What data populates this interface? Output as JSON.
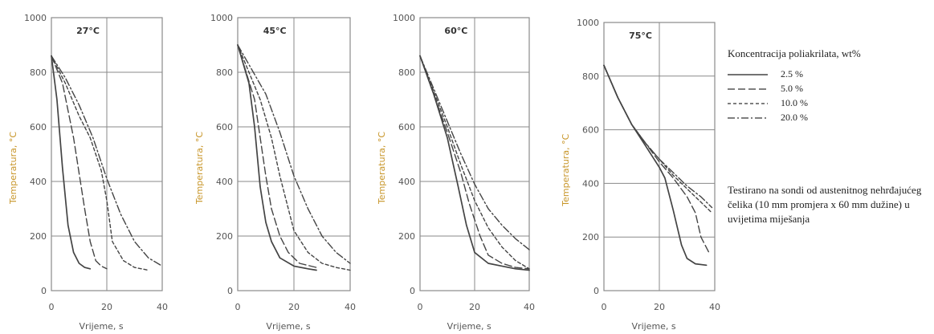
{
  "chart_data": [
    {
      "type": "line",
      "title": "27°C",
      "xlabel": "Vrijeme, s",
      "ylabel": "Temperatura, °C",
      "xlim": [
        0,
        40
      ],
      "ylim": [
        0,
        1000
      ],
      "xticks": [
        "0",
        "20",
        "40"
      ],
      "yticks": [
        "0",
        "200",
        "400",
        "600",
        "800",
        "1000"
      ],
      "series": [
        {
          "name": "2.5 %",
          "x": [
            0,
            2,
            4,
            6,
            8,
            10,
            12,
            14
          ],
          "y": [
            860,
            700,
            450,
            240,
            140,
            100,
            85,
            80
          ]
        },
        {
          "name": "5.0 %",
          "x": [
            0,
            4,
            8,
            12,
            14,
            16,
            18,
            20
          ],
          "y": [
            860,
            760,
            560,
            300,
            180,
            110,
            90,
            80
          ]
        },
        {
          "name": "10.0 %",
          "x": [
            0,
            5,
            10,
            14,
            18,
            20,
            22,
            26,
            30,
            35
          ],
          "y": [
            860,
            760,
            640,
            560,
            440,
            330,
            180,
            110,
            85,
            75
          ]
        },
        {
          "name": "20.0 %",
          "x": [
            0,
            5,
            10,
            15,
            20,
            25,
            30,
            35,
            40
          ],
          "y": [
            860,
            780,
            680,
            560,
            410,
            280,
            180,
            120,
            90
          ]
        }
      ]
    },
    {
      "type": "line",
      "title": "45°C",
      "xlabel": "Vrijeme, s",
      "ylabel": "Temperatura, °C",
      "xlim": [
        0,
        40
      ],
      "ylim": [
        0,
        1000
      ],
      "xticks": [
        "0",
        "20",
        "40"
      ],
      "yticks": [
        "0",
        "200",
        "400",
        "600",
        "800",
        "1000"
      ],
      "series": [
        {
          "name": "2.5 %",
          "x": [
            0,
            4,
            6,
            8,
            10,
            12,
            15,
            20,
            25,
            28
          ],
          "y": [
            900,
            760,
            600,
            380,
            250,
            180,
            120,
            90,
            80,
            75
          ]
        },
        {
          "name": "5.0 %",
          "x": [
            0,
            6,
            8,
            10,
            12,
            15,
            18,
            22,
            28
          ],
          "y": [
            900,
            700,
            560,
            420,
            300,
            200,
            140,
            100,
            85
          ]
        },
        {
          "name": "10.0 %",
          "x": [
            0,
            8,
            12,
            15,
            18,
            20,
            25,
            30,
            35,
            40
          ],
          "y": [
            900,
            700,
            560,
            420,
            300,
            220,
            140,
            100,
            85,
            75
          ]
        },
        {
          "name": "20.0 %",
          "x": [
            0,
            10,
            15,
            20,
            25,
            30,
            35,
            40
          ],
          "y": [
            900,
            720,
            580,
            420,
            300,
            200,
            140,
            100
          ]
        }
      ]
    },
    {
      "type": "line",
      "title": "60°C",
      "xlabel": "Vrijeme, s",
      "ylabel": "Temperatura, °C",
      "xlim": [
        0,
        40
      ],
      "ylim": [
        0,
        1000
      ],
      "xticks": [
        "0",
        "20",
        "40"
      ],
      "yticks": [
        "0",
        "200",
        "400",
        "600",
        "800",
        "1000"
      ],
      "series": [
        {
          "name": "2.5 %",
          "x": [
            0,
            5,
            10,
            14,
            17,
            20,
            25,
            30,
            35,
            40
          ],
          "y": [
            860,
            720,
            560,
            380,
            240,
            140,
            100,
            90,
            80,
            75
          ]
        },
        {
          "name": "5.0 %",
          "x": [
            0,
            5,
            10,
            15,
            18,
            22,
            25,
            30,
            35,
            40
          ],
          "y": [
            860,
            720,
            580,
            430,
            320,
            200,
            130,
            100,
            85,
            80
          ]
        },
        {
          "name": "10.0 %",
          "x": [
            0,
            5,
            10,
            15,
            20,
            25,
            30,
            35,
            40
          ],
          "y": [
            860,
            730,
            600,
            460,
            330,
            230,
            160,
            110,
            80
          ]
        },
        {
          "name": "20.0 %",
          "x": [
            0,
            5,
            10,
            15,
            20,
            25,
            30,
            35,
            40
          ],
          "y": [
            860,
            740,
            620,
            500,
            390,
            300,
            240,
            190,
            150
          ]
        }
      ]
    },
    {
      "type": "line",
      "title": "75°C",
      "xlabel": "Vrijeme, s",
      "ylabel": "Temperatura, °C",
      "xlim": [
        0,
        40
      ],
      "ylim": [
        0,
        1000
      ],
      "xticks": [
        "0",
        "20",
        "40"
      ],
      "yticks": [
        "0",
        "200",
        "400",
        "600",
        "800",
        "1000"
      ],
      "series": [
        {
          "name": "2.5 %",
          "x": [
            0,
            5,
            10,
            15,
            20,
            22,
            25,
            28,
            30,
            33,
            37
          ],
          "y": [
            840,
            720,
            620,
            540,
            460,
            420,
            300,
            170,
            120,
            100,
            95
          ]
        },
        {
          "name": "5.0 %",
          "x": [
            0,
            5,
            10,
            15,
            20,
            25,
            30,
            33,
            35,
            38
          ],
          "y": [
            840,
            720,
            620,
            550,
            480,
            420,
            350,
            290,
            200,
            140
          ]
        },
        {
          "name": "10.0 %",
          "x": [
            0,
            5,
            10,
            15,
            20,
            25,
            30,
            35,
            39
          ],
          "y": [
            840,
            720,
            620,
            550,
            490,
            430,
            380,
            330,
            290
          ]
        },
        {
          "name": "20.0 %",
          "x": [
            0,
            5,
            10,
            15,
            20,
            25,
            30,
            35,
            39
          ],
          "y": [
            840,
            720,
            620,
            550,
            490,
            440,
            390,
            350,
            310
          ]
        }
      ]
    }
  ],
  "legend": {
    "title": "Koncentracija poliakrilata, wt%",
    "items": [
      {
        "label": "2.5 %",
        "style": "solid"
      },
      {
        "label": "5.0 %",
        "style": "long-dash"
      },
      {
        "label": "10.0 %",
        "style": "short-dash"
      },
      {
        "label": "20.0 %",
        "style": "dash-dot"
      }
    ]
  },
  "note": "Testirano na sondi od austenitnog nehrđajućeg čelika (10 mm promjera x 60 mm dužine) u uvijetima miješanja",
  "colors": {
    "axis_text": "#c8962a",
    "grid": "#8a8a8a",
    "line": "#444444",
    "tick_text": "#555555"
  }
}
